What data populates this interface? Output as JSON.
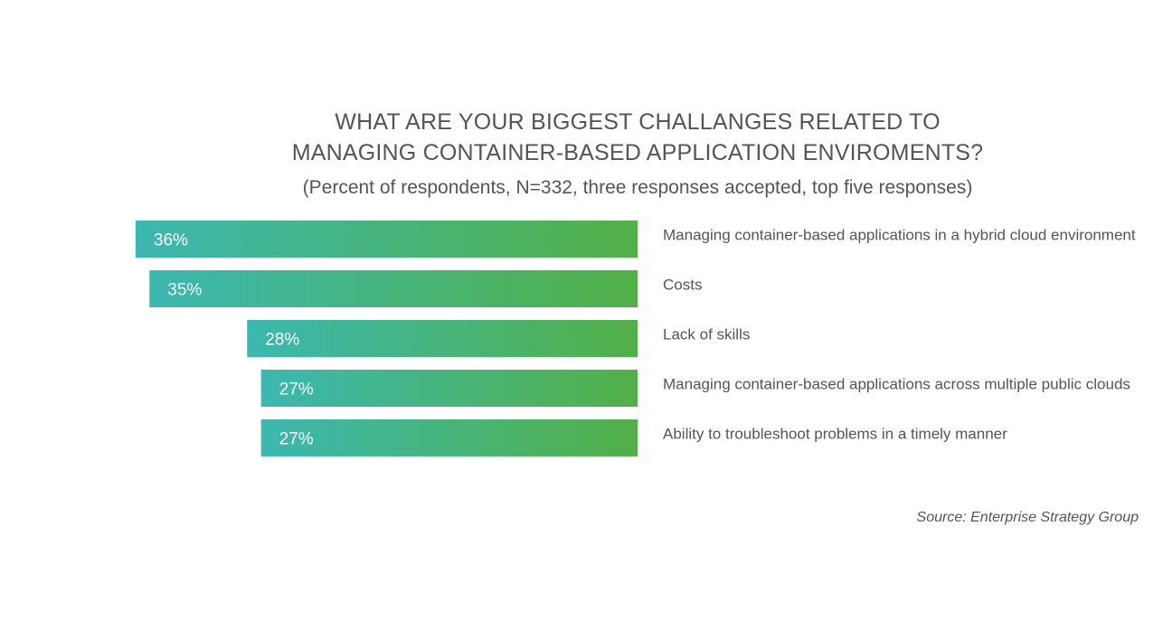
{
  "chart_data": {
    "type": "bar",
    "orientation": "horizontal",
    "title_lines": [
      "WHAT ARE YOUR BIGGEST CHALLANGES RELATED TO",
      "MANAGING CONTAINER-BASED APPLICATION ENVIROMENTS?"
    ],
    "subtitle": "(Percent of respondents, N=332, three responses accepted, top five responses)",
    "categories": [
      "Managing container-based applications in a hybrid cloud environment",
      "Costs",
      "Lack of skills",
      "Managing container-based applications across multiple public clouds",
      "Ability to troubleshoot problems in a timely manner"
    ],
    "values": [
      36,
      35,
      28,
      27,
      27
    ],
    "value_labels": [
      "36%",
      "35%",
      "28%",
      "27%",
      "27%"
    ],
    "unit": "%",
    "bar_gradient": [
      "#3bb8b0",
      "#52b047"
    ],
    "text_color": "#555555",
    "value_label_color": "#ffffff",
    "grid": false,
    "legend": "none"
  },
  "source": "Source: Enterprise Strategy Group"
}
